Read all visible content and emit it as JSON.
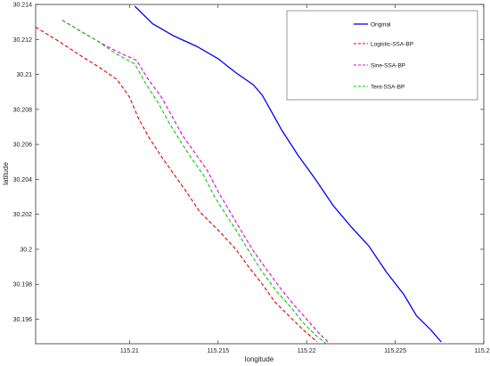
{
  "chart_data": {
    "type": "line",
    "title": "",
    "xlabel": "longitude",
    "ylabel": "latitude",
    "xlim": [
      115.2047,
      115.23
    ],
    "ylim": [
      30.1946,
      30.214
    ],
    "xticks": [
      "115.21",
      "115.215",
      "115.22",
      "115.225",
      "115.23"
    ],
    "yticks": [
      "30.196",
      "30.198",
      "30.2",
      "30.202",
      "30.204",
      "30.206",
      "30.208",
      "30.21",
      "30.212",
      "30.214"
    ],
    "grid": false,
    "legend_position": "top-right",
    "series": [
      {
        "name": "Original",
        "color": "#0000ff",
        "dash": "solid",
        "points": [
          [
            115.2103,
            30.2139
          ],
          [
            115.2113,
            30.2129
          ],
          [
            115.2125,
            30.2122
          ],
          [
            115.2138,
            30.2116
          ],
          [
            115.215,
            30.2109
          ],
          [
            115.216,
            30.2101
          ],
          [
            115.217,
            30.2094
          ],
          [
            115.2175,
            30.2088
          ],
          [
            115.218,
            30.2079
          ],
          [
            115.2186,
            30.2068
          ],
          [
            115.2195,
            30.2054
          ],
          [
            115.2205,
            30.204
          ],
          [
            115.2215,
            30.2025
          ],
          [
            115.2225,
            30.2013
          ],
          [
            115.2235,
            30.2002
          ],
          [
            115.2245,
            30.1987
          ],
          [
            115.2255,
            30.1974
          ],
          [
            115.2262,
            30.1962
          ],
          [
            115.227,
            30.1954
          ],
          [
            115.2276,
            30.1947
          ]
        ]
      },
      {
        "name": "Logistic-SSA-BP",
        "color": "#e00000",
        "dash": "dashed",
        "points": [
          [
            115.2047,
            30.2127
          ],
          [
            115.206,
            30.2119
          ],
          [
            115.2072,
            30.2111
          ],
          [
            115.2083,
            30.2104
          ],
          [
            115.2093,
            30.2097
          ],
          [
            115.21,
            30.2087
          ],
          [
            115.2105,
            30.2075
          ],
          [
            115.2111,
            30.2064
          ],
          [
            115.2118,
            30.2053
          ],
          [
            115.2125,
            30.2043
          ],
          [
            115.2132,
            30.2033
          ],
          [
            115.214,
            30.2021
          ],
          [
            115.215,
            30.2011
          ],
          [
            115.216,
            30.2
          ],
          [
            115.2168,
            30.1989
          ],
          [
            115.2175,
            30.198
          ],
          [
            115.2182,
            30.197
          ],
          [
            115.219,
            30.1962
          ],
          [
            115.2198,
            30.1954
          ],
          [
            115.2206,
            30.1947
          ]
        ]
      },
      {
        "name": "Sine-SSA-BP",
        "color": "#e000e0",
        "dash": "dashed",
        "points": [
          [
            115.2062,
            30.2131
          ],
          [
            115.2072,
            30.2125
          ],
          [
            115.2082,
            30.2119
          ],
          [
            115.2093,
            30.2113
          ],
          [
            115.2104,
            30.2108
          ],
          [
            115.211,
            30.2098
          ],
          [
            115.2118,
            30.2087
          ],
          [
            115.2124,
            30.2076
          ],
          [
            115.213,
            30.2065
          ],
          [
            115.2137,
            30.2055
          ],
          [
            115.2144,
            30.2045
          ],
          [
            115.215,
            30.2033
          ],
          [
            115.2157,
            30.2021
          ],
          [
            115.2164,
            30.2009
          ],
          [
            115.217,
            30.1999
          ],
          [
            115.2177,
            30.1989
          ],
          [
            115.2185,
            30.1978
          ],
          [
            115.2193,
            30.1968
          ],
          [
            115.22,
            30.196
          ],
          [
            115.2207,
            30.1952
          ],
          [
            115.2213,
            30.1946
          ]
        ]
      },
      {
        "name": "Tent-SSA-BP",
        "color": "#00cc00",
        "dash": "dashed",
        "points": [
          [
            115.2062,
            30.2131
          ],
          [
            115.2072,
            30.2125
          ],
          [
            115.2082,
            30.2119
          ],
          [
            115.2092,
            30.2112
          ],
          [
            115.2103,
            30.2106
          ],
          [
            115.2109,
            30.2095
          ],
          [
            115.2116,
            30.2084
          ],
          [
            115.2122,
            30.2073
          ],
          [
            115.2128,
            30.2063
          ],
          [
            115.2135,
            30.2052
          ],
          [
            115.2142,
            30.2042
          ],
          [
            115.2148,
            30.203
          ],
          [
            115.2155,
            30.2019
          ],
          [
            115.2162,
            30.2008
          ],
          [
            115.2168,
            30.1998
          ],
          [
            115.2175,
            30.1987
          ],
          [
            115.2183,
            30.1976
          ],
          [
            115.2191,
            30.1967
          ],
          [
            115.2198,
            30.1958
          ],
          [
            115.2205,
            30.1951
          ],
          [
            115.2211,
            30.1946
          ]
        ]
      }
    ]
  }
}
